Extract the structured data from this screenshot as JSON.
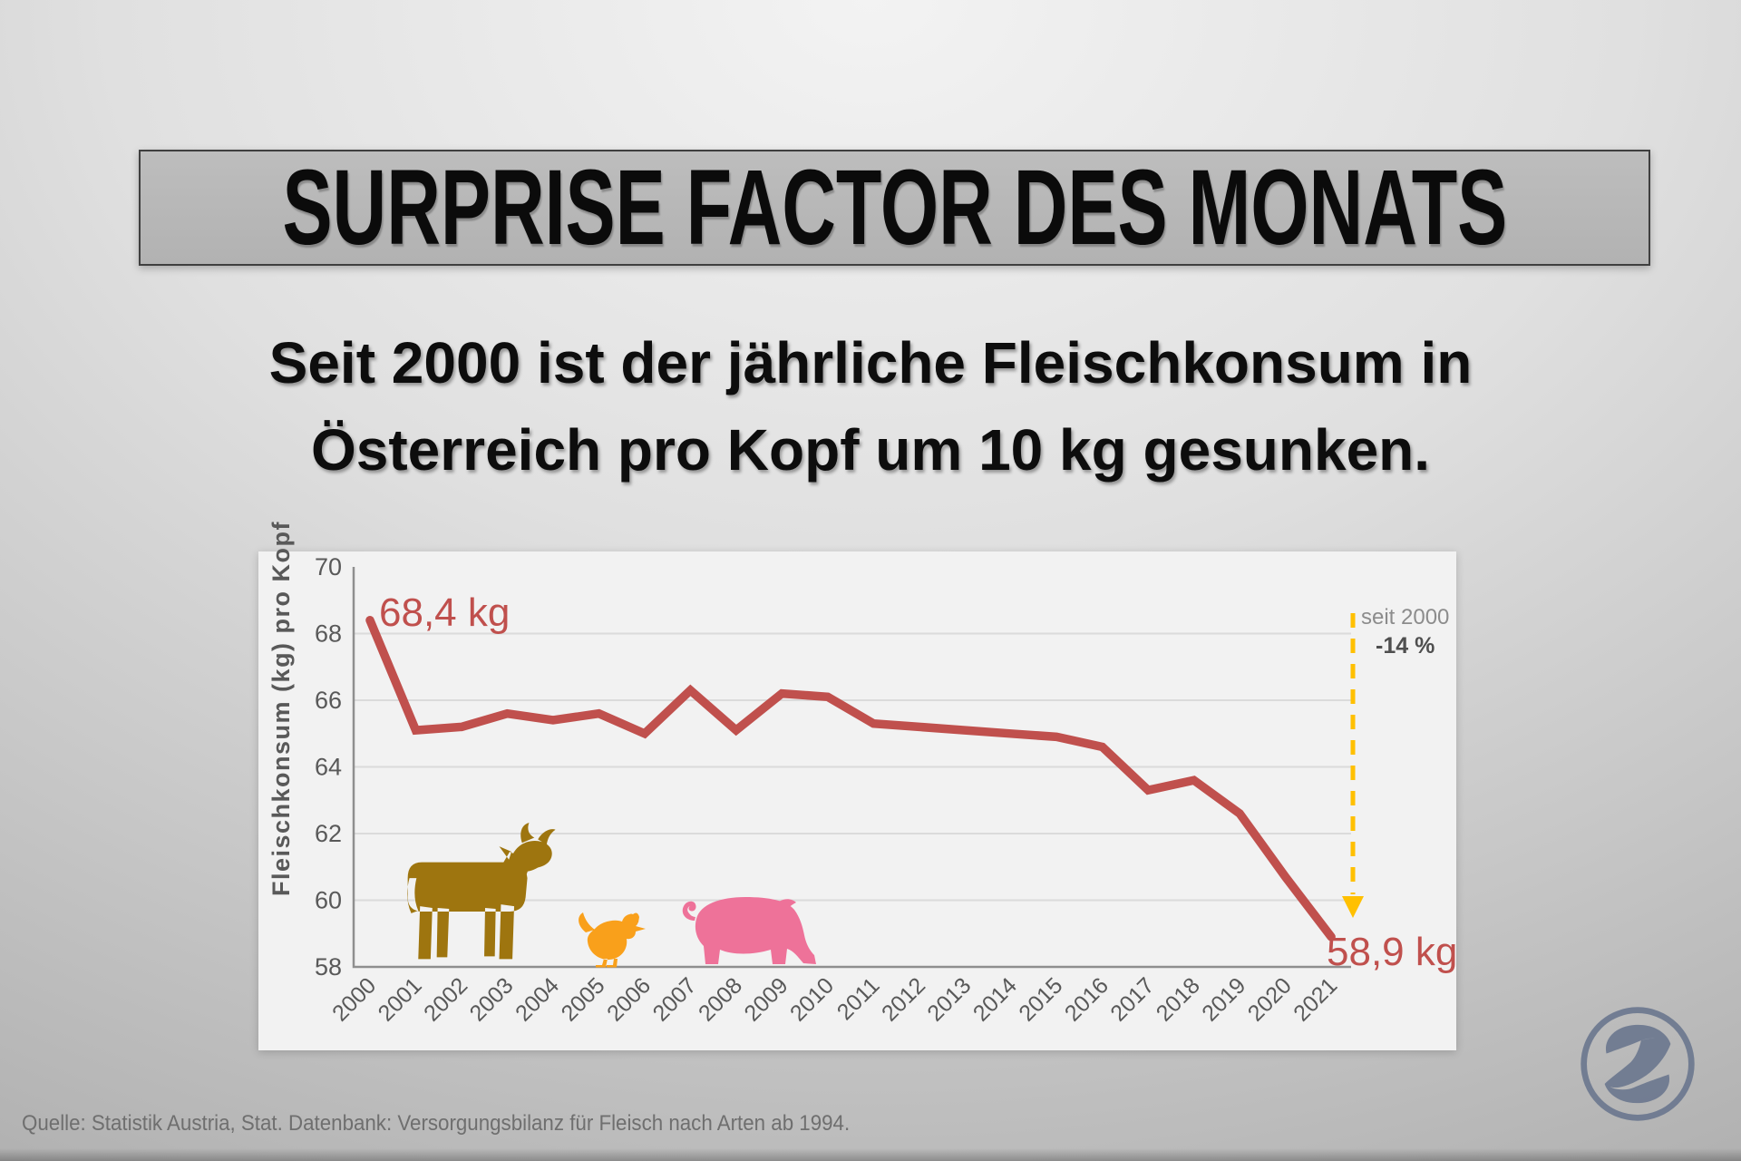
{
  "header": {
    "title": "SURPRISE FACTOR DES MONATS",
    "subtitle_line1": "Seit 2000 ist der jährliche Fleischkonsum in",
    "subtitle_line2": "Österreich pro Kopf um 10 kg gesunken."
  },
  "chart_data": {
    "type": "line",
    "title": "",
    "xlabel": "",
    "ylabel": "Fleischkonsum (kg) pro Kopf",
    "ylim": [
      58,
      70
    ],
    "y_ticks": [
      58,
      60,
      62,
      64,
      66,
      68,
      70
    ],
    "grid": "horizontal-only",
    "legend_position": "none",
    "years": [
      "2000",
      "2001",
      "2002",
      "2003",
      "2004",
      "2005",
      "2006",
      "2007",
      "2008",
      "2009",
      "2010",
      "2011",
      "2012",
      "2013",
      "2014",
      "2015",
      "2016",
      "2017",
      "2018",
      "2019",
      "2020",
      "2021"
    ],
    "series": [
      {
        "name": "Fleischkonsum (kg) pro Kopf",
        "values": [
          68.4,
          65.1,
          65.2,
          65.6,
          65.4,
          65.6,
          65.0,
          66.3,
          65.1,
          66.2,
          66.1,
          65.3,
          65.2,
          65.1,
          65.0,
          64.9,
          64.6,
          63.3,
          63.6,
          62.6,
          60.7,
          58.9
        ]
      }
    ],
    "line_color": "#c0504d",
    "annotations": {
      "start_label": "68,4 kg",
      "end_label": "58,9 kg",
      "change_period": "seit 2000",
      "change_percent": "-14 %",
      "arrow_color": "#ffc000"
    },
    "icon_colors": {
      "cow": "#9e750f",
      "chicken": "#f9a01b",
      "pig": "#ee7299"
    }
  },
  "footer": {
    "source": "Quelle: Statistik Austria, Stat. Datenbank: Versorgungsbilanz für Fleisch nach Arten ab 1994.",
    "logo": "S monogram in circle"
  },
  "colors": {
    "page_bg_light": "#f3f3f3",
    "page_bg_dark": "#a9a9a9",
    "title_box_bg": "#b5b5b5",
    "title_box_border": "#3f3f3f",
    "panel_bg": "#f2f2f2",
    "axis_text": "#595959",
    "grid_line": "#dbdbdb",
    "axis_line": "#8f8f8f",
    "annotation_gray": "#8c8c8c",
    "value_label_red": "#c0504d",
    "source_text": "#6f6f6f",
    "logo_color": "#66738c"
  }
}
